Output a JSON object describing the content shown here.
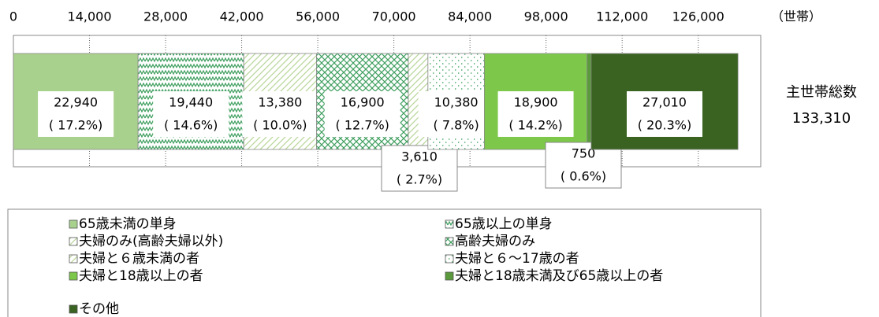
{
  "chart_data": {
    "type": "stacked-bar",
    "xlabel": "（世帯）",
    "xlim": [
      0,
      137500
    ],
    "xticks": [
      0,
      {
        "value": 14000,
        "label": "14,000"
      },
      {
        "value": 28000,
        "label": "28,000"
      },
      {
        "value": 42000,
        "label": "42,000"
      },
      {
        "value": 56000,
        "label": "56,000"
      },
      {
        "value": 70000,
        "label": "70,000"
      },
      {
        "value": 84000,
        "label": "84,000"
      },
      {
        "value": 98000,
        "label": "98,000"
      },
      {
        "value": 112000,
        "label": "112,000"
      },
      {
        "value": 126000,
        "label": "126,000"
      }
    ],
    "grid": true,
    "total": {
      "label": "主世帯総数",
      "value": 133310,
      "value_label": "133,310"
    },
    "series": [
      {
        "name": "65歳未満の単身",
        "color": "#a9d18e",
        "pattern": "solid",
        "values": [
          22940
        ],
        "value_labels": [
          "22,940"
        ],
        "shares": [
          17.2
        ],
        "share_labels": [
          "( 17.2%)"
        ]
      },
      {
        "name": "65歳以上の単身",
        "color": "#3f9f5f",
        "pattern": "zigzag",
        "values": [
          19440
        ],
        "value_labels": [
          "19,440"
        ],
        "shares": [
          14.6
        ],
        "share_labels": [
          "( 14.6%)"
        ]
      },
      {
        "name": "夫婦のみ(高齢夫婦以外)",
        "color": "#b8d598",
        "pattern": "hatch",
        "values": [
          13380
        ],
        "value_labels": [
          "13,380"
        ],
        "shares": [
          10.0
        ],
        "share_labels": [
          "( 10.0%)"
        ]
      },
      {
        "name": "高齢夫婦のみ",
        "color": "#3f9f5f",
        "pattern": "cross",
        "values": [
          16900
        ],
        "value_labels": [
          "16,900"
        ],
        "shares": [
          12.7
        ],
        "share_labels": [
          "( 12.7%)"
        ]
      },
      {
        "name": "夫婦と６歳未満の者",
        "color": "#b8d598",
        "pattern": "hatch",
        "values": [
          3610
        ],
        "value_labels": [
          "3,610"
        ],
        "shares": [
          2.7
        ],
        "share_labels": [
          "( 2.7%)"
        ]
      },
      {
        "name": "夫婦と６～17歳の者",
        "color": "#4aa86a",
        "pattern": "dots",
        "values": [
          10380
        ],
        "value_labels": [
          "10,380"
        ],
        "shares": [
          7.8
        ],
        "share_labels": [
          "( 7.8%)"
        ]
      },
      {
        "name": "夫婦と18歳以上の者",
        "color": "#7dc84a",
        "pattern": "solid",
        "values": [
          18900
        ],
        "value_labels": [
          "18,900"
        ],
        "shares": [
          14.2
        ],
        "share_labels": [
          "( 14.2%)"
        ]
      },
      {
        "name": "夫婦と18歳未満及び65歳以上の者",
        "color": "#5a9a3c",
        "pattern": "solid",
        "values": [
          750
        ],
        "value_labels": [
          "750"
        ],
        "shares": [
          0.6
        ],
        "share_labels": [
          "( 0.6%)"
        ]
      },
      {
        "name": "その他",
        "color": "#3a6321",
        "pattern": "solid",
        "values": [
          27010
        ],
        "value_labels": [
          "27,010"
        ],
        "shares": [
          20.3
        ],
        "share_labels": [
          "( 20.3%)"
        ]
      }
    ]
  }
}
